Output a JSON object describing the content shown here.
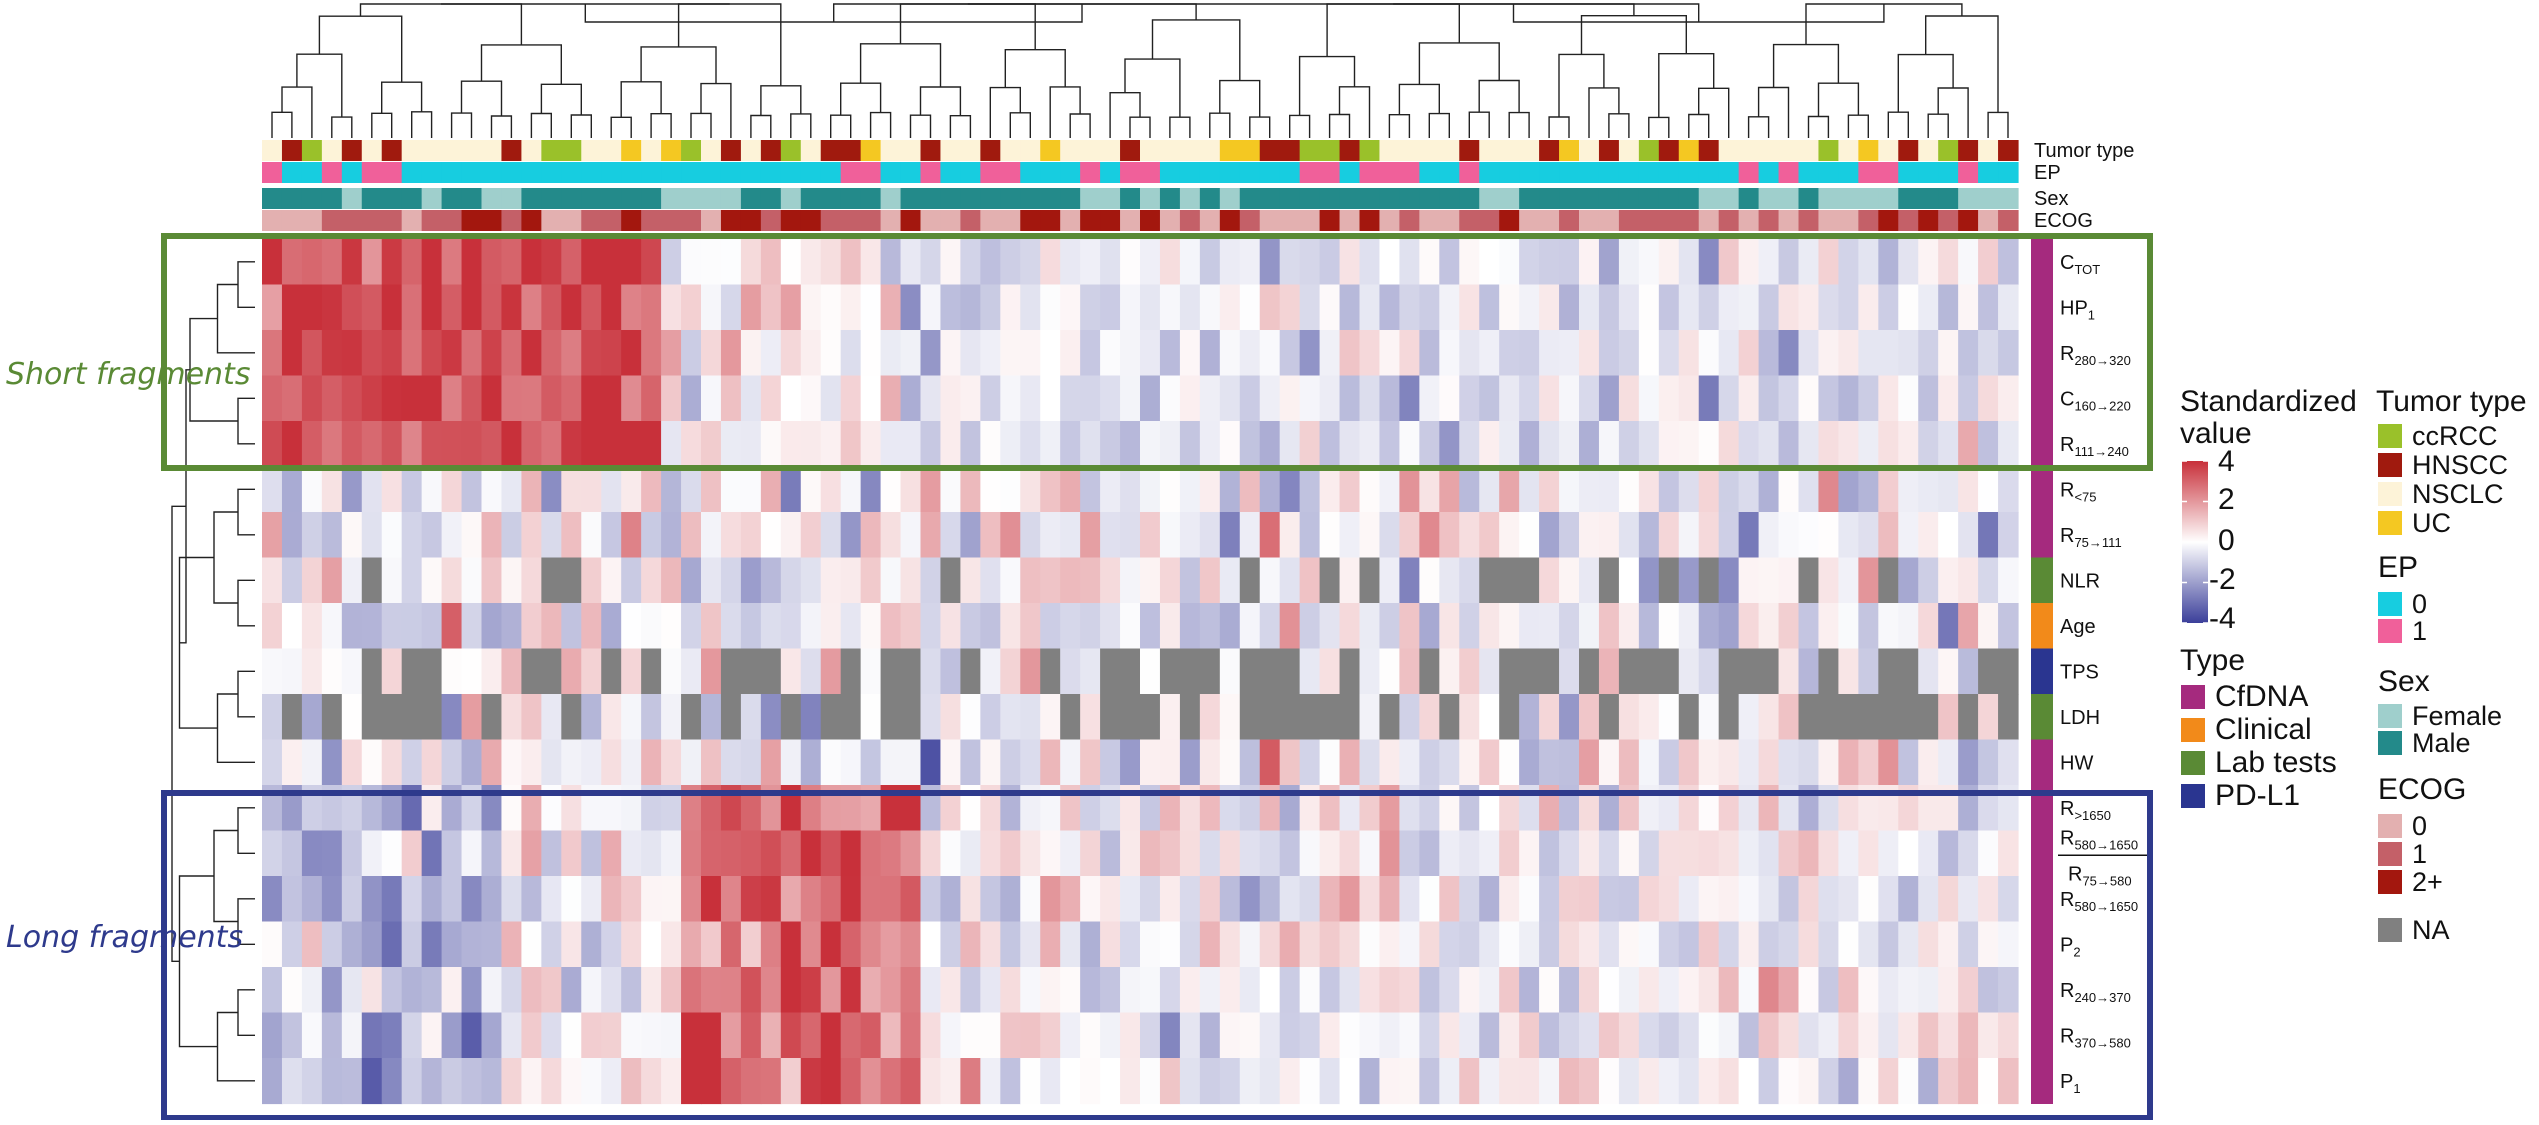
{
  "chart_data": {
    "type": "heatmap",
    "row_groups": [
      {
        "label": "Short fragments",
        "color": "#5a8a35"
      },
      {
        "label": "Long fragments",
        "color": "#2e3a8c"
      }
    ],
    "annotation_tracks": [
      "Tumor type",
      "EP",
      "Sex",
      "ECOG"
    ],
    "rows": [
      {
        "base": "C",
        "sub": "TOT",
        "type": "CfDNA",
        "group": "short"
      },
      {
        "base": "HP",
        "sub": "1",
        "type": "CfDNA",
        "group": "short"
      },
      {
        "base": "R",
        "sub": "280→320",
        "type": "CfDNA",
        "group": "short"
      },
      {
        "base": "C",
        "sub": "160→220",
        "type": "CfDNA",
        "group": "short"
      },
      {
        "base": "R",
        "sub": "111→240",
        "type": "CfDNA",
        "group": "short"
      },
      {
        "base": "R",
        "sub": "<75",
        "type": "CfDNA",
        "group": "mid"
      },
      {
        "base": "R",
        "sub": "75→111",
        "type": "CfDNA",
        "group": "mid"
      },
      {
        "base": "NLR",
        "sub": "",
        "type": "Lab tests",
        "group": "mid"
      },
      {
        "base": "Age",
        "sub": "",
        "type": "Clinical",
        "group": "mid"
      },
      {
        "base": "TPS",
        "sub": "",
        "type": "PD-L1",
        "group": "mid"
      },
      {
        "base": "LDH",
        "sub": "",
        "type": "Lab tests",
        "group": "mid"
      },
      {
        "base": "HW",
        "sub": "",
        "type": "CfDNA",
        "group": "mid"
      },
      {
        "base": "R",
        "sub": ">1650",
        "type": "CfDNA",
        "group": "long"
      },
      {
        "base": "R",
        "sub": "580→1650",
        "den_base": "R",
        "den_sub": "75→580",
        "type": "CfDNA",
        "group": "long",
        "fraction": true
      },
      {
        "base": "R",
        "sub": "580→1650",
        "type": "CfDNA",
        "group": "long"
      },
      {
        "base": "P",
        "sub": "2",
        "type": "CfDNA",
        "group": "long"
      },
      {
        "base": "R",
        "sub": "240→370",
        "type": "CfDNA",
        "group": "long"
      },
      {
        "base": "R",
        "sub": "370→580",
        "type": "CfDNA",
        "group": "long"
      },
      {
        "base": "P",
        "sub": "1",
        "type": "CfDNA",
        "group": "long"
      }
    ],
    "n_samples": 88,
    "value_range": [
      -4,
      4
    ],
    "colorbar": {
      "title": "Standardized value",
      "ticks": [
        4,
        2,
        0,
        -2,
        -4
      ],
      "colors": {
        "low": "#3b3f9a",
        "mid": "#ffffff",
        "high": "#c8303a"
      }
    },
    "na_color": "#808080",
    "legends": {
      "type": {
        "title": "Type",
        "items": [
          {
            "label": "CfDNA",
            "color": "#a52a7e"
          },
          {
            "label": "Clinical",
            "color": "#f28a1a"
          },
          {
            "label": "Lab tests",
            "color": "#5a8a35"
          },
          {
            "label": "PD-L1",
            "color": "#2a3590"
          }
        ]
      },
      "tumor_type": {
        "title": "Tumor type",
        "items": [
          {
            "label": "ccRCC",
            "color": "#9ac12a"
          },
          {
            "label": "HNSCC",
            "color": "#a01a0e"
          },
          {
            "label": "NSCLC",
            "color": "#fdf3d8"
          },
          {
            "label": "UC",
            "color": "#f4c822"
          }
        ]
      },
      "ep": {
        "title": "EP",
        "items": [
          {
            "label": "0",
            "color": "#17cde0"
          },
          {
            "label": "1",
            "color": "#f0609a"
          }
        ]
      },
      "sex": {
        "title": "Sex",
        "items": [
          {
            "label": "Female",
            "color": "#9fcfcc"
          },
          {
            "label": "Male",
            "color": "#238a8a"
          }
        ]
      },
      "ecog": {
        "title": "ECOG",
        "items": [
          {
            "label": "0",
            "color": "#e3b0b0"
          },
          {
            "label": "1",
            "color": "#c46068"
          },
          {
            "label": "2+",
            "color": "#a3170e"
          }
        ]
      },
      "na": {
        "label": "NA",
        "color": "#808080"
      }
    }
  }
}
